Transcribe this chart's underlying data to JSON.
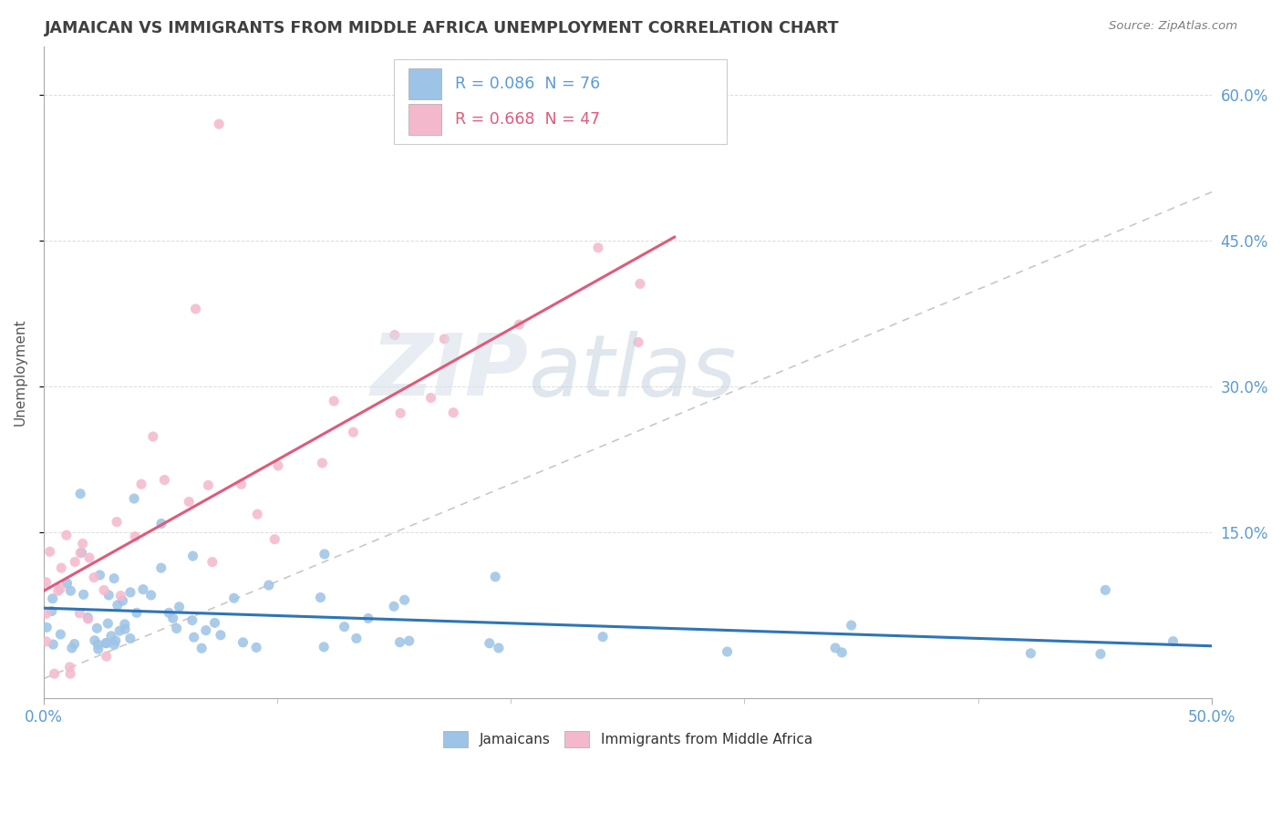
{
  "title": "JAMAICAN VS IMMIGRANTS FROM MIDDLE AFRICA UNEMPLOYMENT CORRELATION CHART",
  "source": "Source: ZipAtlas.com",
  "ylabel": "Unemployment",
  "xlim": [
    0.0,
    0.5
  ],
  "ylim": [
    -0.02,
    0.65
  ],
  "ytick_values": [
    0.15,
    0.3,
    0.45,
    0.6
  ],
  "ytick_labels": [
    "15.0%",
    "30.0%",
    "45.0%",
    "60.0%"
  ],
  "xtick_values": [
    0.0,
    0.1,
    0.2,
    0.3,
    0.4,
    0.5
  ],
  "xtick_show": [
    0.0,
    0.5
  ],
  "legend_r1": "0.086",
  "legend_n1": "76",
  "legend_r2": "0.668",
  "legend_n2": "47",
  "color_jamaican": "#9dc3e6",
  "color_middle_africa": "#f4b8cd",
  "line_color_jamaican": "#2e75b6",
  "line_color_middle_africa": "#e05a7a",
  "diag_color": "#c8c8c8",
  "watermark_zip_color": "#d0dce8",
  "watermark_atlas_color": "#c0ccd8",
  "title_color": "#404040",
  "source_color": "#808080",
  "axis_label_color": "#555555",
  "tick_color": "#5b9bd5",
  "grid_color": "#d9d9d9",
  "legend_box_color": "#e8e8e8"
}
